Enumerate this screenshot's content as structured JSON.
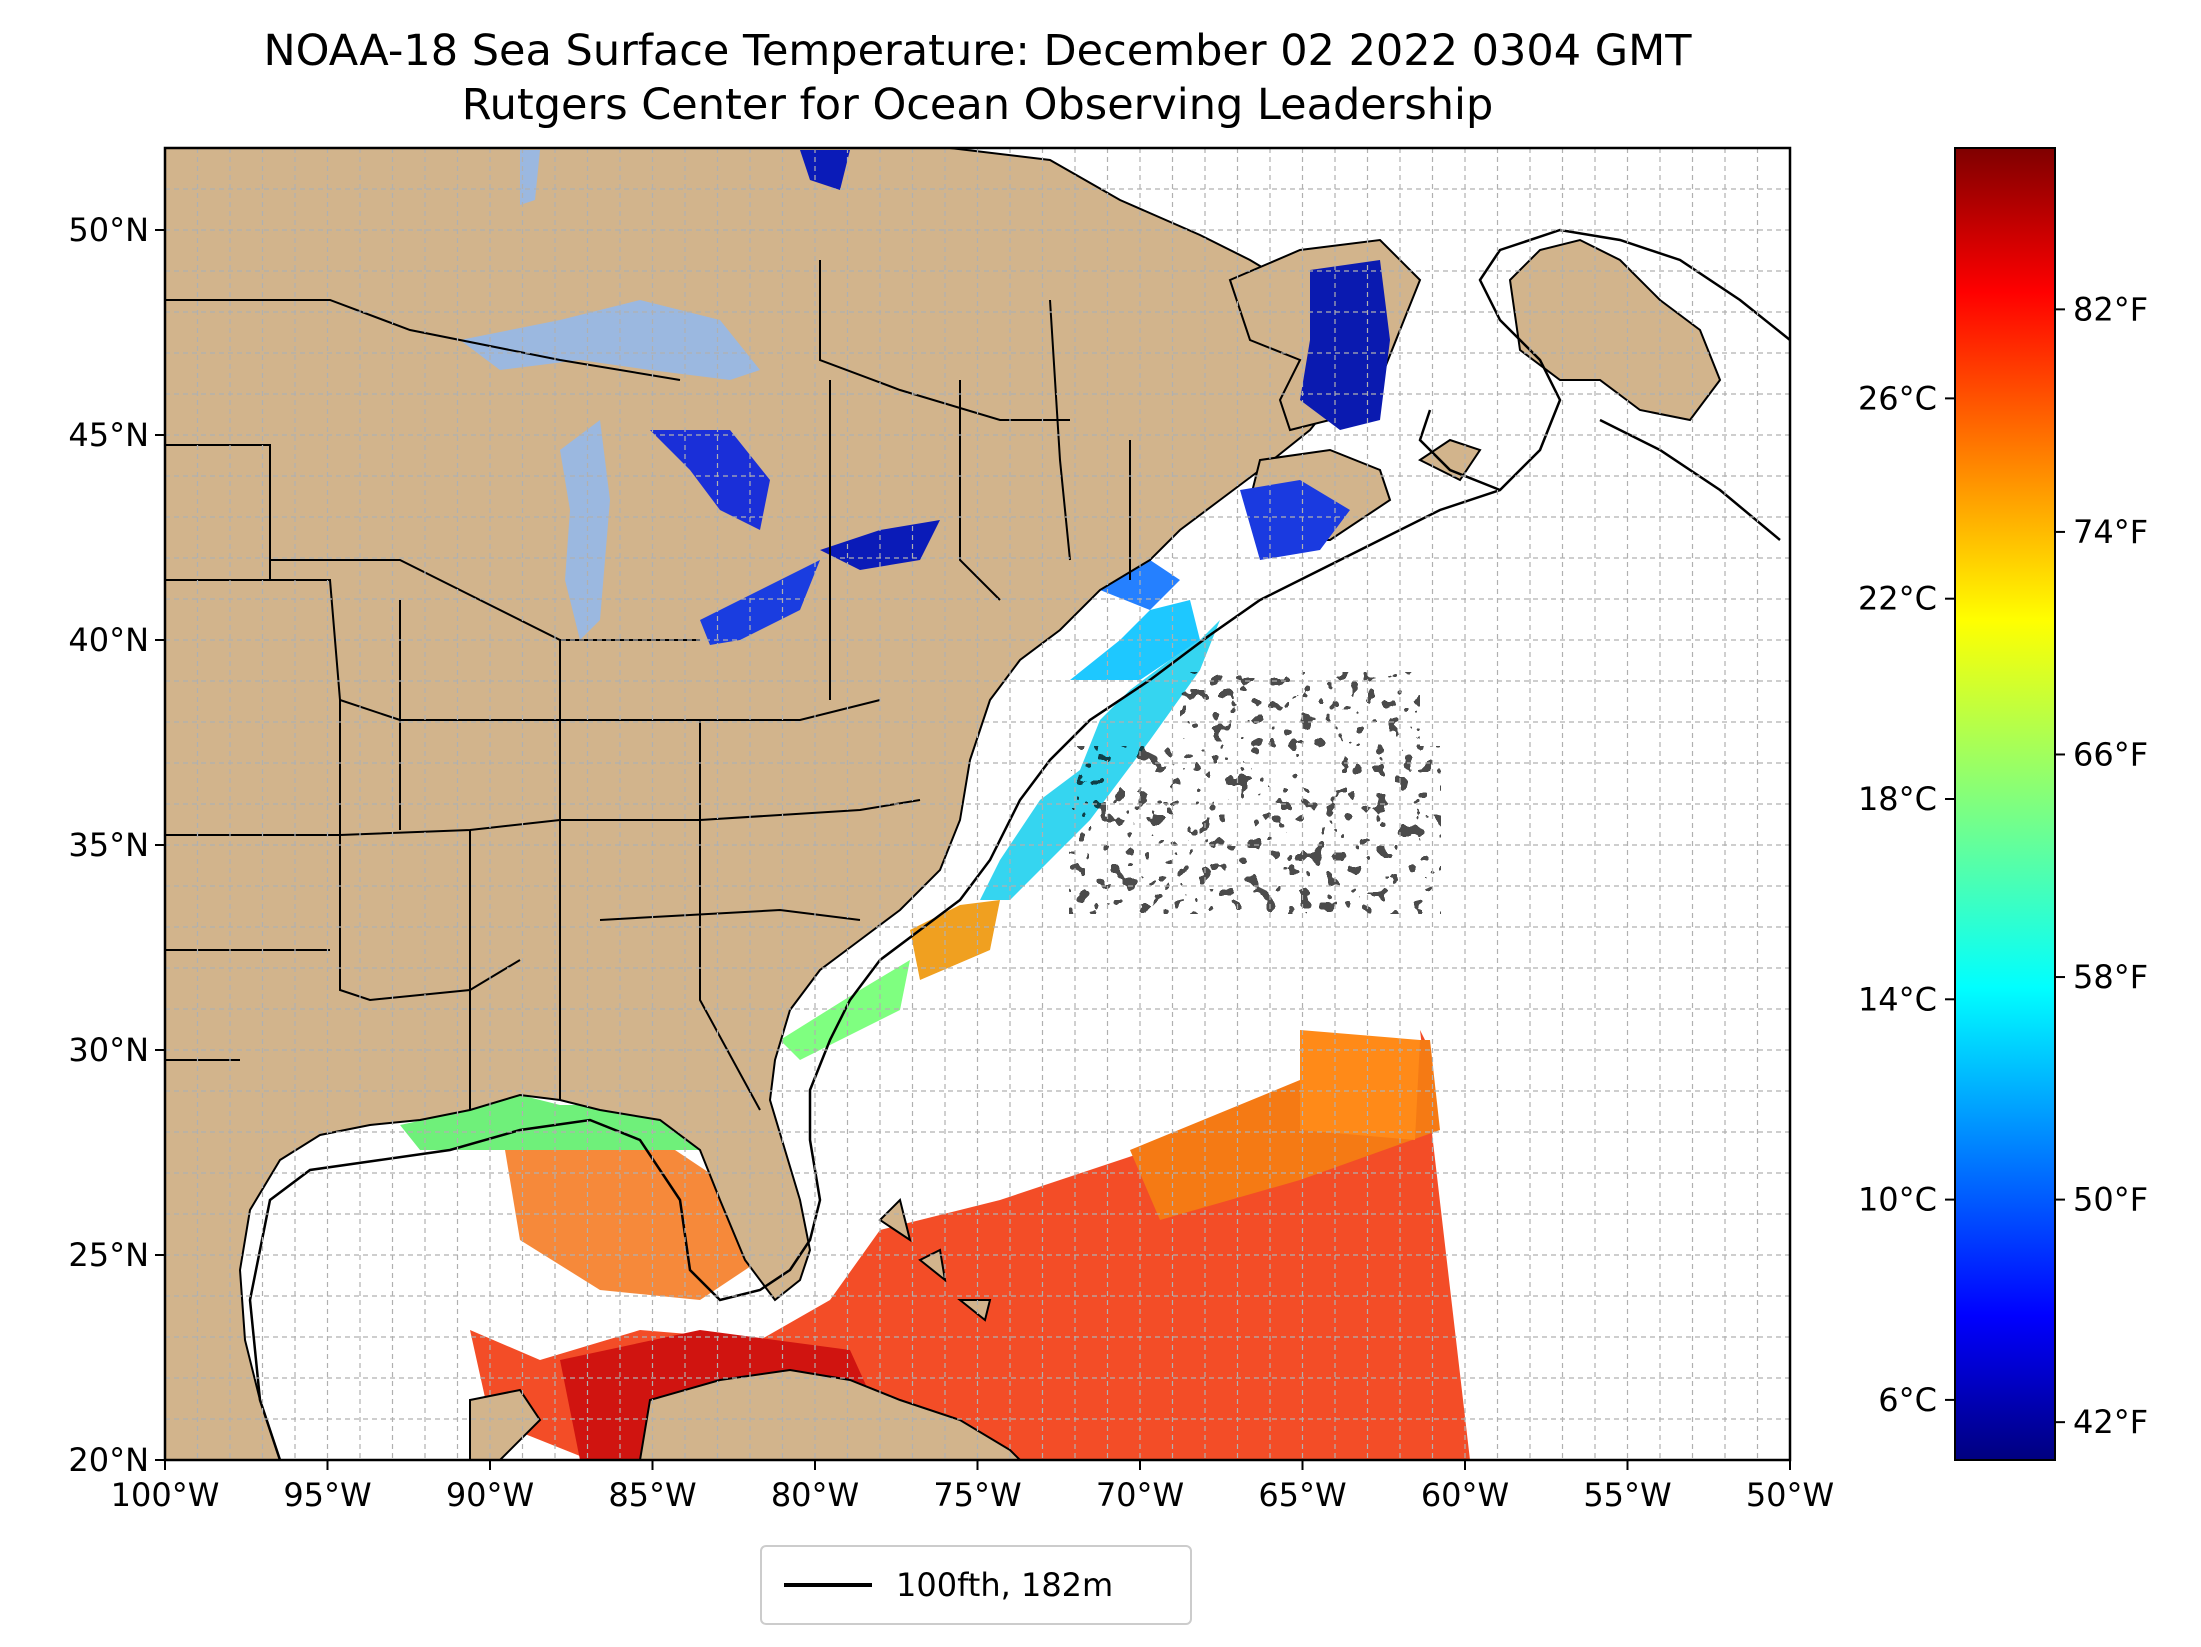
{
  "title_line1": "NOAA-18 Sea Surface Temperature: December 02 2022 0304 GMT",
  "title_line2": "Rutgers Center for Ocean Observing Leadership",
  "map": {
    "lon_range": [
      -100,
      -50
    ],
    "lat_range": [
      20,
      52
    ],
    "x_ticks": [
      "100°W",
      "95°W",
      "90°W",
      "85°W",
      "80°W",
      "75°W",
      "70°W",
      "65°W",
      "60°W",
      "55°W",
      "50°W"
    ],
    "y_ticks": [
      "20°N",
      "25°N",
      "30°N",
      "35°N",
      "40°N",
      "45°N",
      "50°N"
    ],
    "grid": true,
    "colors": {
      "land": "#d2b48c",
      "lakes": "#9bb8e0",
      "ocean": "#ffffff",
      "borders": "#000000"
    }
  },
  "colorbar": {
    "colormap": "jet",
    "celsius_ticks": [
      "6°C",
      "10°C",
      "14°C",
      "18°C",
      "22°C",
      "26°C"
    ],
    "fahrenheit_ticks": [
      "42°F",
      "50°F",
      "58°F",
      "66°F",
      "74°F",
      "82°F"
    ]
  },
  "legend": {
    "label": "100fth, 182m",
    "position": "bottom-center"
  }
}
